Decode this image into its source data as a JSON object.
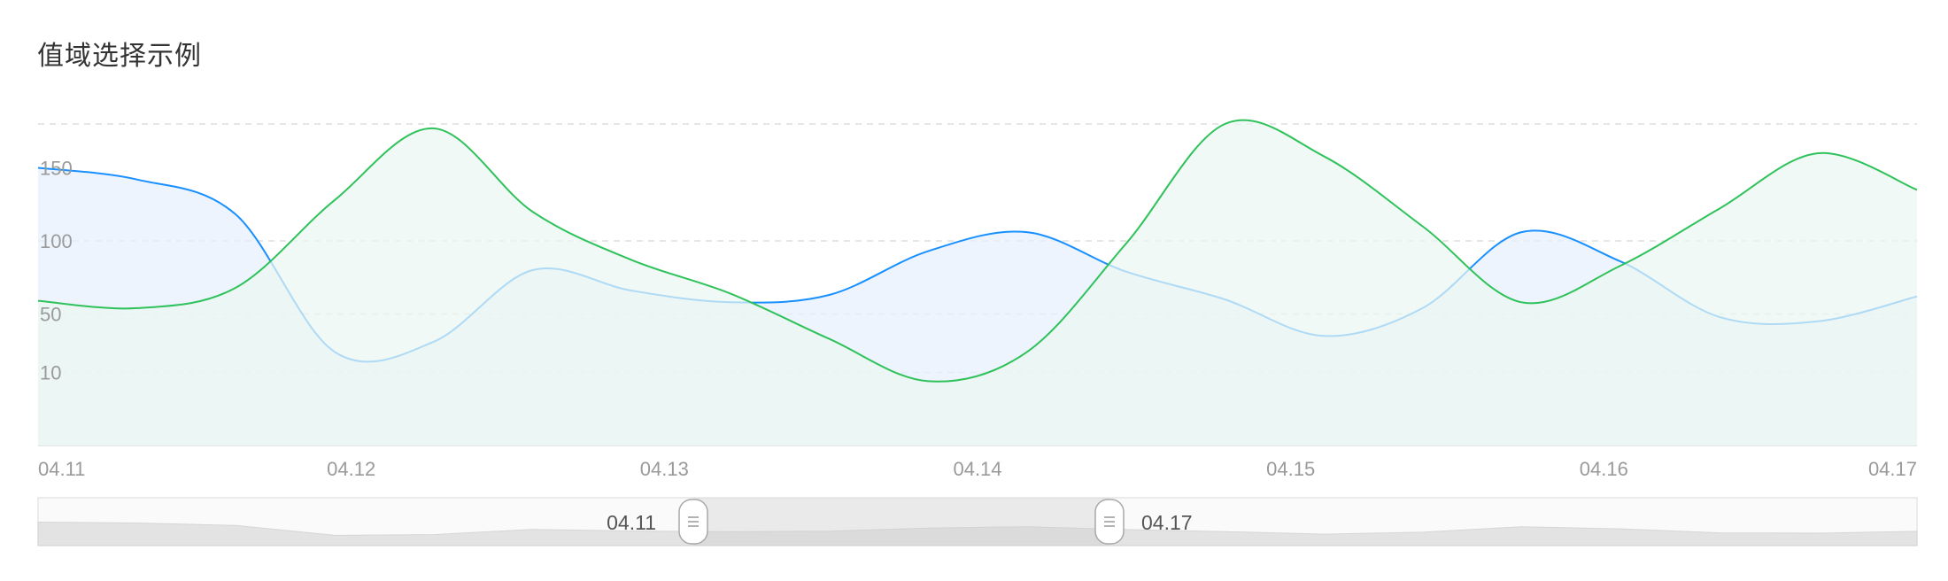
{
  "title": "值域选择示例",
  "chart_data": {
    "type": "area",
    "categories": [
      "04.11",
      "04.12",
      "04.13",
      "04.14",
      "04.15",
      "04.16",
      "04.17"
    ],
    "x": [
      "04.11",
      "04.11",
      "04.11",
      "04.12",
      "04.12",
      "04.12",
      "04.13",
      "04.13",
      "04.13",
      "04.14",
      "04.14",
      "04.14",
      "04.15",
      "04.15",
      "04.15",
      "04.16",
      "04.16",
      "04.16",
      "04.17",
      "04.17"
    ],
    "series": [
      {
        "values": [
          150,
          142,
          118,
          24,
          31,
          80,
          66,
          58,
          63,
          93,
          106,
          79,
          60,
          35,
          54,
          106,
          86,
          48,
          45,
          62
        ],
        "color": "#1890ff",
        "fill": "#e8f0fe"
      },
      {
        "values": [
          59,
          54,
          68,
          128,
          177,
          120,
          87,
          64,
          33,
          4,
          24,
          98,
          180,
          158,
          110,
          58,
          83,
          122,
          160,
          135
        ],
        "color": "#2fc25b",
        "fill": "#eaf6f1"
      }
    ],
    "y_ticks": [
      10,
      50,
      100,
      150
    ],
    "ylim": [
      -40,
      180
    ],
    "grid": true,
    "range_slider": {
      "start": "04.11",
      "end": "04.17"
    }
  }
}
